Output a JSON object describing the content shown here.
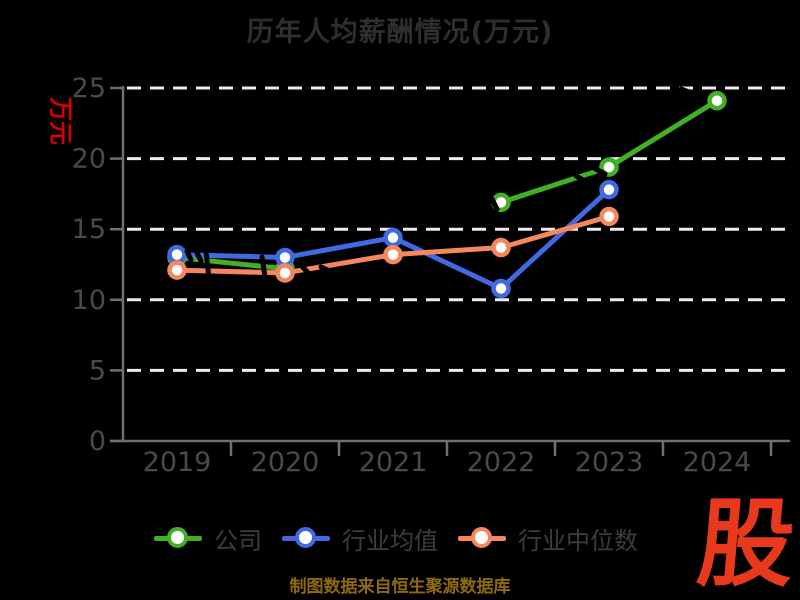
{
  "chart_data": {
    "type": "line",
    "title": "历年人均薪酬情况(万元)",
    "ylabel": "万元",
    "ylabel_color": "#d60000",
    "categories": [
      "2019",
      "2020",
      "2021",
      "2022",
      "2023",
      "2024"
    ],
    "series": [
      {
        "name": "公司",
        "color": "#42b024",
        "values": [
          13.0,
          12.2,
          null,
          16.9,
          19.4,
          24.1
        ]
      },
      {
        "name": "行业均值",
        "color": "#4169e1",
        "values": [
          13.2,
          13.0,
          14.4,
          10.8,
          17.8,
          null
        ]
      },
      {
        "name": "行业中位数",
        "color": "#f4875e",
        "values": [
          12.1,
          11.9,
          13.2,
          13.7,
          15.9,
          null
        ]
      }
    ],
    "ylim": [
      0,
      25
    ],
    "yticks": [
      0,
      5,
      10,
      15,
      20,
      25
    ],
    "grid": "dashed-white-horizontal",
    "legend_position": "bottom",
    "marker": "circle-white-fill-colored-ring"
  },
  "footer": {
    "source_note": "制图数据来自恒生聚源数据库",
    "source_note_color": "#8d6a10",
    "logo_text": "股",
    "logo_color": "#e8391c"
  },
  "style": {
    "background": "#000000",
    "title_color": "#2e2e2e",
    "tick_label_color": "#4a4a4a",
    "axis_color": "#6f6f6f",
    "grid_color": "#ececec",
    "legend_text_color": "#3d3d3d"
  }
}
